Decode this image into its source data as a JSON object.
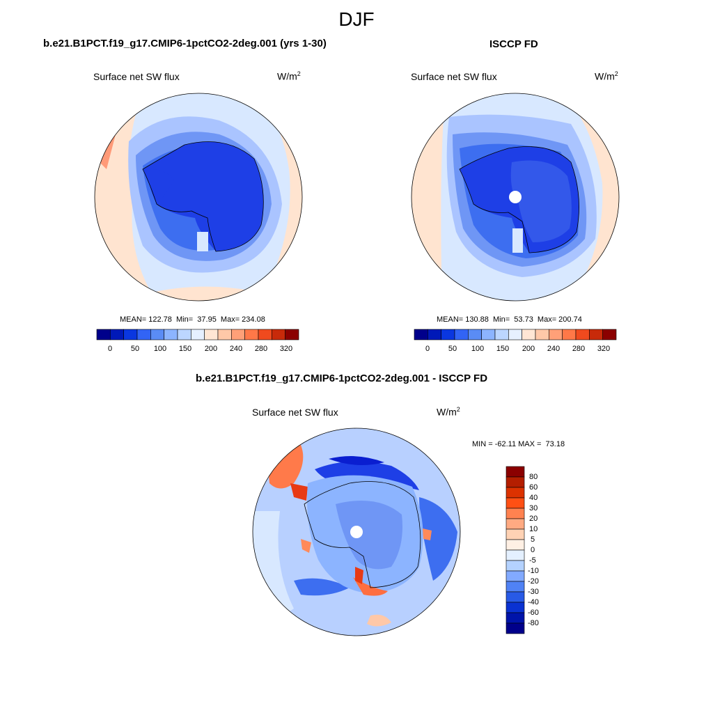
{
  "main_title": "DJF",
  "colors": {
    "dark_blue": "#00008b",
    "blue": "#1e3fe6",
    "mid_blue": "#3d6ef0",
    "light_blue": "#aac4ff",
    "pale_blue": "#d8e8ff",
    "peach": "#ffdcc4",
    "orange": "#ff6e40",
    "dark_red": "#8b0000"
  },
  "panels": [
    {
      "title": "b.e21.B1PCT.f19_g17.CMIP6-1pctCO2-2deg.001 (yrs 1-30)",
      "variable": "Surface net SW flux",
      "units": "W/m",
      "units_sup": "2",
      "stats": "MEAN= 122.78  Min=  37.95  Max= 234.08",
      "colorbar_labels": [
        "0",
        "50",
        "100",
        "150",
        "200",
        "240",
        "280",
        "320"
      ]
    },
    {
      "title": "ISCCP FD",
      "variable": "Surface net SW flux",
      "units": "W/m",
      "units_sup": "2",
      "stats": "MEAN= 130.88  Min=  53.73  Max= 200.74",
      "colorbar_labels": [
        "0",
        "50",
        "100",
        "150",
        "200",
        "240",
        "280",
        "320"
      ]
    },
    {
      "title": "b.e21.B1PCT.f19_g17.CMIP6-1pctCO2-2deg.001 - ISCCP FD",
      "variable": "Surface net SW flux",
      "units": "W/m",
      "units_sup": "2",
      "stats": "MIN = -62.11 MAX =  73.18",
      "colorbar_labels": [
        "80",
        "60",
        "40",
        "30",
        "20",
        "10",
        "5",
        "0",
        "-5",
        "-10",
        "-20",
        "-30",
        "-40",
        "-60",
        "-80"
      ]
    }
  ],
  "colorbar_abs_colors": [
    "#00008b",
    "#0019b8",
    "#0a37e0",
    "#3264f5",
    "#5a8cf5",
    "#8cb4ff",
    "#bcd6ff",
    "#e6f0ff",
    "#ffe6d4",
    "#ffc8a8",
    "#ffa078",
    "#ff7848",
    "#f04a1e",
    "#c82a0a",
    "#8b0000"
  ],
  "colorbar_diff_colors": [
    "#8b0000",
    "#b41e00",
    "#dc3200",
    "#ff5014",
    "#ff8250",
    "#ffaa82",
    "#ffd2b4",
    "#fff0e4",
    "#e4f0ff",
    "#b4d2ff",
    "#82aaff",
    "#5082f5",
    "#285ae6",
    "#0a32d2",
    "#0014aa",
    "#00008b"
  ]
}
